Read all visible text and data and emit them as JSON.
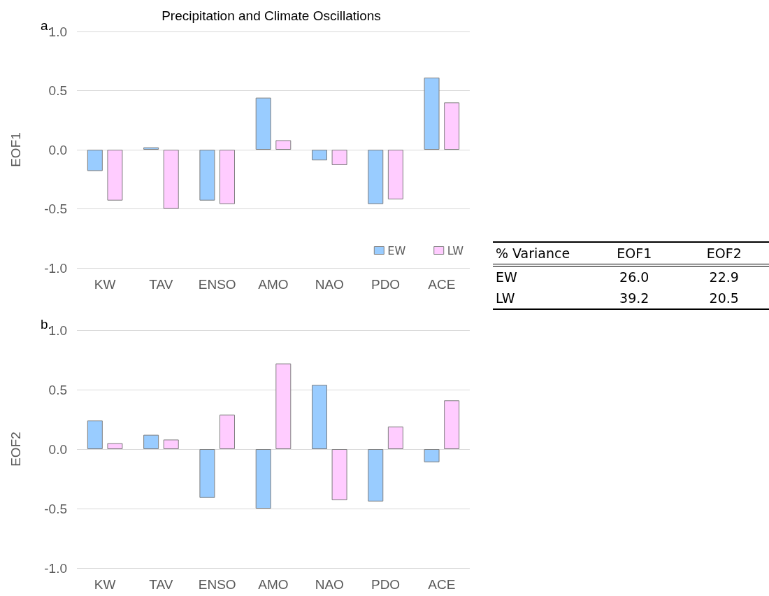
{
  "chart_data": [
    {
      "type": "bar",
      "title": "Precipitation and Climate Oscillations",
      "ylabel": "EOF1",
      "annotations": [
        "a."
      ],
      "categories": [
        "KW",
        "TAV",
        "ENSO",
        "AMO",
        "NAO",
        "PDO",
        "ACE"
      ],
      "series": [
        {
          "name": "EW",
          "color": "#99ccff",
          "values": [
            -0.18,
            0.02,
            -0.43,
            0.44,
            -0.09,
            -0.46,
            0.61
          ]
        },
        {
          "name": "LW",
          "color": "#ffccff",
          "values": [
            -0.43,
            -0.5,
            -0.46,
            0.08,
            -0.13,
            -0.42,
            0.4
          ]
        }
      ],
      "ylim": [
        -1,
        1
      ],
      "yticks": [
        {
          "value": -1,
          "label": "-1.0"
        },
        {
          "value": -0.5,
          "label": "-0.5"
        },
        {
          "value": 0,
          "label": "0.0"
        },
        {
          "value": 0.5,
          "label": "0.5"
        },
        {
          "value": 1,
          "label": "1.0"
        }
      ],
      "grid": "y",
      "legend": "bottom right"
    },
    {
      "type": "bar",
      "ylabel": "EOF2",
      "annotations": [
        "b."
      ],
      "categories": [
        "KW",
        "TAV",
        "ENSO",
        "AMO",
        "NAO",
        "PDO",
        "ACE"
      ],
      "series": [
        {
          "color": "#99ccff",
          "values": [
            0.24,
            0.12,
            -0.41,
            -0.5,
            0.54,
            -0.44,
            -0.11
          ]
        },
        {
          "color": "#ffccff",
          "values": [
            0.05,
            0.08,
            0.29,
            0.72,
            -0.43,
            0.19,
            0.41
          ]
        }
      ],
      "ylim": [
        -1,
        1
      ],
      "yticks": [
        {
          "value": -1,
          "label": "-1.0"
        },
        {
          "value": -0.5,
          "label": "-0.5"
        },
        {
          "value": 0,
          "label": "0.0"
        },
        {
          "value": 0.5,
          "label": "0.5"
        },
        {
          "value": 1,
          "label": "1.0"
        }
      ],
      "grid": "y"
    },
    {
      "type": "other",
      "title": "% Variance",
      "categories": [
        "EW",
        "LW"
      ],
      "series": [
        {
          "name": "EOF1",
          "values": [
            26.0,
            39.2
          ],
          "value_labels": [
            "26.0",
            "39.2"
          ]
        },
        {
          "name": "EOF2",
          "values": [
            22.9,
            20.5
          ],
          "value_labels": [
            "22.9",
            "20.5"
          ]
        }
      ]
    }
  ]
}
